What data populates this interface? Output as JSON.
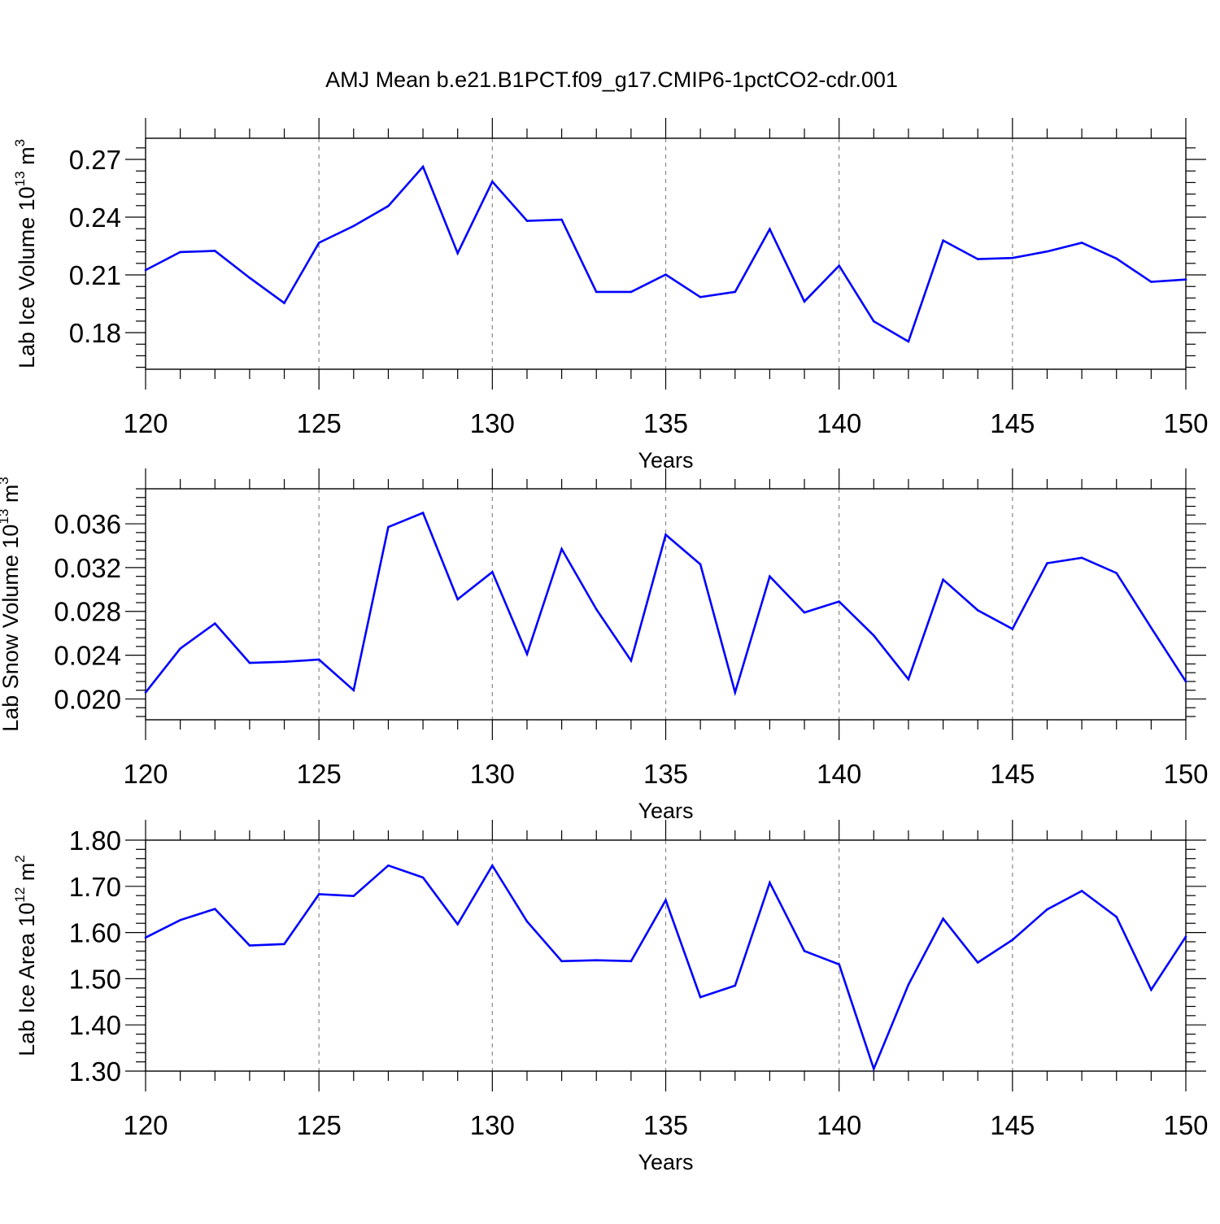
{
  "title": "AMJ Mean b.e21.B1PCT.f09_g17.CMIP6-1pctCO2-cdr.001",
  "colors": {
    "series": "#0000ff",
    "axes": "#000000",
    "grid": "#888888"
  },
  "chart_data": [
    {
      "type": "line",
      "ylabel_text": "Lab Ice Volume 10",
      "ylabel_exp": "13",
      "ylabel_unit": " m",
      "ylabel_unit_exp": "3",
      "xlabel": "Years",
      "xlim": [
        120,
        150
      ],
      "ylim": [
        0.161,
        0.281
      ],
      "xticks": [
        120,
        125,
        130,
        135,
        140,
        145,
        150
      ],
      "xtick_labels": [
        "120",
        "125",
        "130",
        "135",
        "140",
        "145",
        "150"
      ],
      "yticks": [
        0.18,
        0.21,
        0.24,
        0.27
      ],
      "ytick_labels": [
        "0.18",
        "0.21",
        "0.24",
        "0.27"
      ],
      "x": [
        120,
        121,
        122,
        123,
        124,
        125,
        126,
        127,
        128,
        129,
        130,
        131,
        132,
        133,
        134,
        135,
        136,
        137,
        138,
        139,
        140,
        141,
        142,
        143,
        144,
        145,
        146,
        147,
        148,
        149,
        150
      ],
      "values": [
        0.2125,
        0.2219,
        0.2225,
        0.2085,
        0.1954,
        0.2267,
        0.2354,
        0.2458,
        0.2662,
        0.2213,
        0.2585,
        0.2381,
        0.2387,
        0.2012,
        0.2012,
        0.2102,
        0.1985,
        0.2012,
        0.2338,
        0.1962,
        0.2148,
        0.1859,
        0.1754,
        0.2279,
        0.2182,
        0.2188,
        0.2222,
        0.2267,
        0.2185,
        0.2064,
        0.2076
      ]
    },
    {
      "type": "line",
      "ylabel_text": "Lab Snow Volume 10",
      "ylabel_exp": "13",
      "ylabel_unit": " m",
      "ylabel_unit_exp": "3",
      "xlabel": "Years",
      "xlim": [
        120,
        150
      ],
      "ylim": [
        0.0181,
        0.0392
      ],
      "xticks": [
        120,
        125,
        130,
        135,
        140,
        145,
        150
      ],
      "xtick_labels": [
        "120",
        "125",
        "130",
        "135",
        "140",
        "145",
        "150"
      ],
      "yticks": [
        0.02,
        0.024,
        0.028,
        0.032,
        0.036
      ],
      "ytick_labels": [
        "0.020",
        "0.024",
        "0.028",
        "0.032",
        "0.036"
      ],
      "x": [
        120,
        121,
        122,
        123,
        124,
        125,
        126,
        127,
        128,
        129,
        130,
        131,
        132,
        133,
        134,
        135,
        136,
        137,
        138,
        139,
        140,
        141,
        142,
        143,
        144,
        145,
        146,
        147,
        148,
        149,
        150
      ],
      "values": [
        0.0206,
        0.0246,
        0.0269,
        0.0233,
        0.0234,
        0.0236,
        0.0208,
        0.0357,
        0.037,
        0.0291,
        0.0316,
        0.0241,
        0.0337,
        0.0282,
        0.0235,
        0.035,
        0.0323,
        0.0206,
        0.0312,
        0.0279,
        0.0289,
        0.0258,
        0.0218,
        0.0309,
        0.0281,
        0.0264,
        0.0324,
        0.0329,
        0.0315,
        0.0265,
        0.0216
      ]
    },
    {
      "type": "line",
      "ylabel_text": "Lab Ice Area 10",
      "ylabel_exp": "12",
      "ylabel_unit": " m",
      "ylabel_unit_exp": "2",
      "xlabel": "Years",
      "xlim": [
        120,
        150
      ],
      "ylim": [
        1.3,
        1.8
      ],
      "xticks": [
        120,
        125,
        130,
        135,
        140,
        145,
        150
      ],
      "xtick_labels": [
        "120",
        "125",
        "130",
        "135",
        "140",
        "145",
        "150"
      ],
      "yticks": [
        1.3,
        1.4,
        1.5,
        1.6,
        1.7,
        1.8
      ],
      "ytick_labels": [
        "1.30",
        "1.40",
        "1.50",
        "1.60",
        "1.70",
        "1.80"
      ],
      "x": [
        120,
        121,
        122,
        123,
        124,
        125,
        126,
        127,
        128,
        129,
        130,
        131,
        132,
        133,
        134,
        135,
        136,
        137,
        138,
        139,
        140,
        141,
        142,
        143,
        144,
        145,
        146,
        147,
        148,
        149,
        150
      ],
      "values": [
        1.589,
        1.627,
        1.651,
        1.572,
        1.575,
        1.683,
        1.679,
        1.745,
        1.719,
        1.618,
        1.745,
        1.624,
        1.538,
        1.54,
        1.538,
        1.67,
        1.46,
        1.485,
        1.708,
        1.56,
        1.531,
        1.305,
        1.487,
        1.63,
        1.535,
        1.584,
        1.65,
        1.69,
        1.634,
        1.476,
        1.591
      ]
    }
  ]
}
